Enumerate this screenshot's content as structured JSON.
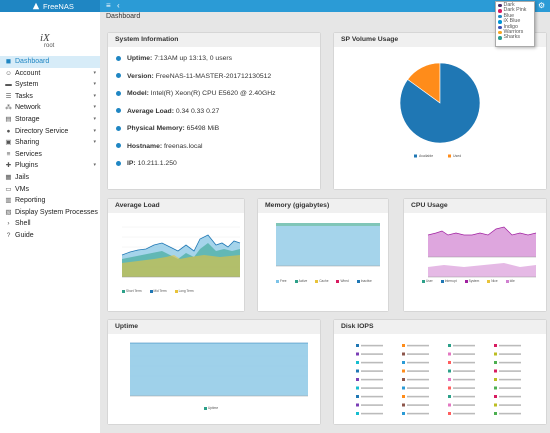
{
  "app": {
    "name": "FreeNAS"
  },
  "topbar": {
    "menu_icon": "≡",
    "back_icon": "‹",
    "gear_icon": "⚙"
  },
  "theme_menu": {
    "items": [
      {
        "label": "Dark",
        "color": "#4a2a6a"
      },
      {
        "label": "Dark Pink",
        "color": "#d81b60"
      },
      {
        "label": "Blue",
        "color": "#1f86c3"
      },
      {
        "label": "iX Blue",
        "color": "#0095d5"
      },
      {
        "label": "Indigo",
        "color": "#3f51b5"
      },
      {
        "label": "Warriors",
        "color": "#f5a623"
      },
      {
        "label": "Sharks",
        "color": "#2a9d8f"
      }
    ]
  },
  "sidebar": {
    "logo": "iX",
    "user": "root",
    "items": [
      {
        "label": "Dashboard",
        "icon": "◼",
        "chevron": "",
        "active": true
      },
      {
        "label": "Account",
        "icon": "☺",
        "chevron": "▾",
        "active": false
      },
      {
        "label": "System",
        "icon": "▬",
        "chevron": "▾",
        "active": false
      },
      {
        "label": "Tasks",
        "icon": "☰",
        "chevron": "▾",
        "active": false
      },
      {
        "label": "Network",
        "icon": "⁂",
        "chevron": "▾",
        "active": false
      },
      {
        "label": "Storage",
        "icon": "▤",
        "chevron": "▾",
        "active": false
      },
      {
        "label": "Directory Service",
        "icon": "●",
        "chevron": "▾",
        "active": false
      },
      {
        "label": "Sharing",
        "icon": "▣",
        "chevron": "▾",
        "active": false
      },
      {
        "label": "Services",
        "icon": "≡",
        "chevron": "",
        "active": false
      },
      {
        "label": "Plugins",
        "icon": "✚",
        "chevron": "▾",
        "active": false
      },
      {
        "label": "Jails",
        "icon": "▦",
        "chevron": "",
        "active": false
      },
      {
        "label": "VMs",
        "icon": "▭",
        "chevron": "",
        "active": false
      },
      {
        "label": "Reporting",
        "icon": "▥",
        "chevron": "",
        "active": false
      },
      {
        "label": "Display System Processes",
        "icon": "▧",
        "chevron": "",
        "active": false
      },
      {
        "label": "Shell",
        "icon": "›",
        "chevron": "",
        "active": false
      },
      {
        "label": "Guide",
        "icon": "?",
        "chevron": "",
        "active": false
      }
    ]
  },
  "breadcrumb": "Dashboard",
  "system_info": {
    "title": "System Information",
    "rows": [
      {
        "label": "Uptime:",
        "value": "7:13AM up 13:13, 0 users"
      },
      {
        "label": "Version:",
        "value": "FreeNAS-11-MASTER-201712130512"
      },
      {
        "label": "Model:",
        "value": "Intel(R) Xeon(R) CPU E5620 @ 2.40GHz"
      },
      {
        "label": "Average Load:",
        "value": "0.34 0.33 0.27"
      },
      {
        "label": "Physical Memory:",
        "value": "65498 MiB"
      },
      {
        "label": "Hostname:",
        "value": "freenas.local"
      },
      {
        "label": "IP:",
        "value": "10.211.1.250"
      }
    ]
  },
  "volume_usage": {
    "title": "SP Volume Usage",
    "chart_data": {
      "type": "pie",
      "slices": [
        {
          "label": "Available",
          "value": 85,
          "color": "#1f77b4"
        },
        {
          "label": "Used",
          "value": 15,
          "color": "#ff8c1a"
        }
      ]
    }
  },
  "average_load": {
    "title": "Average Load",
    "legend": [
      {
        "label": "Short Term",
        "color": "#2ca089"
      },
      {
        "label": "Mid Term",
        "color": "#1f77b4"
      },
      {
        "label": "Long Term",
        "color": "#e8c33a"
      }
    ]
  },
  "memory": {
    "title": "Memory (gigabytes)",
    "legend": [
      {
        "label": "Free",
        "color": "#7cc3e8"
      },
      {
        "label": "Active",
        "color": "#2ca089"
      },
      {
        "label": "Cache",
        "color": "#e8c33a"
      },
      {
        "label": "Wired",
        "color": "#d81b60"
      },
      {
        "label": "Inactive",
        "color": "#1f77b4"
      }
    ]
  },
  "cpu_usage": {
    "title": "CPU Usage",
    "legend": [
      {
        "label": "User",
        "color": "#2ca089"
      },
      {
        "label": "Interrupt",
        "color": "#1f77b4"
      },
      {
        "label": "System",
        "color": "#a020a0"
      },
      {
        "label": "Nice",
        "color": "#e8c33a"
      },
      {
        "label": "Idle",
        "color": "#d080d0"
      }
    ]
  },
  "uptime": {
    "title": "Uptime",
    "legend": [
      {
        "label": "Uptime",
        "color": "#2ca089"
      }
    ]
  },
  "disk_iops": {
    "title": "Disk IOPS",
    "legend_colors": [
      "#1f77b4",
      "#ff8c1a",
      "#2ca089",
      "#d81b60",
      "#7b3fb5",
      "#8c564b",
      "#e377c2",
      "#bcbd22",
      "#17becf",
      "#2b9bd6",
      "#ff5e5e",
      "#4caf50"
    ]
  }
}
